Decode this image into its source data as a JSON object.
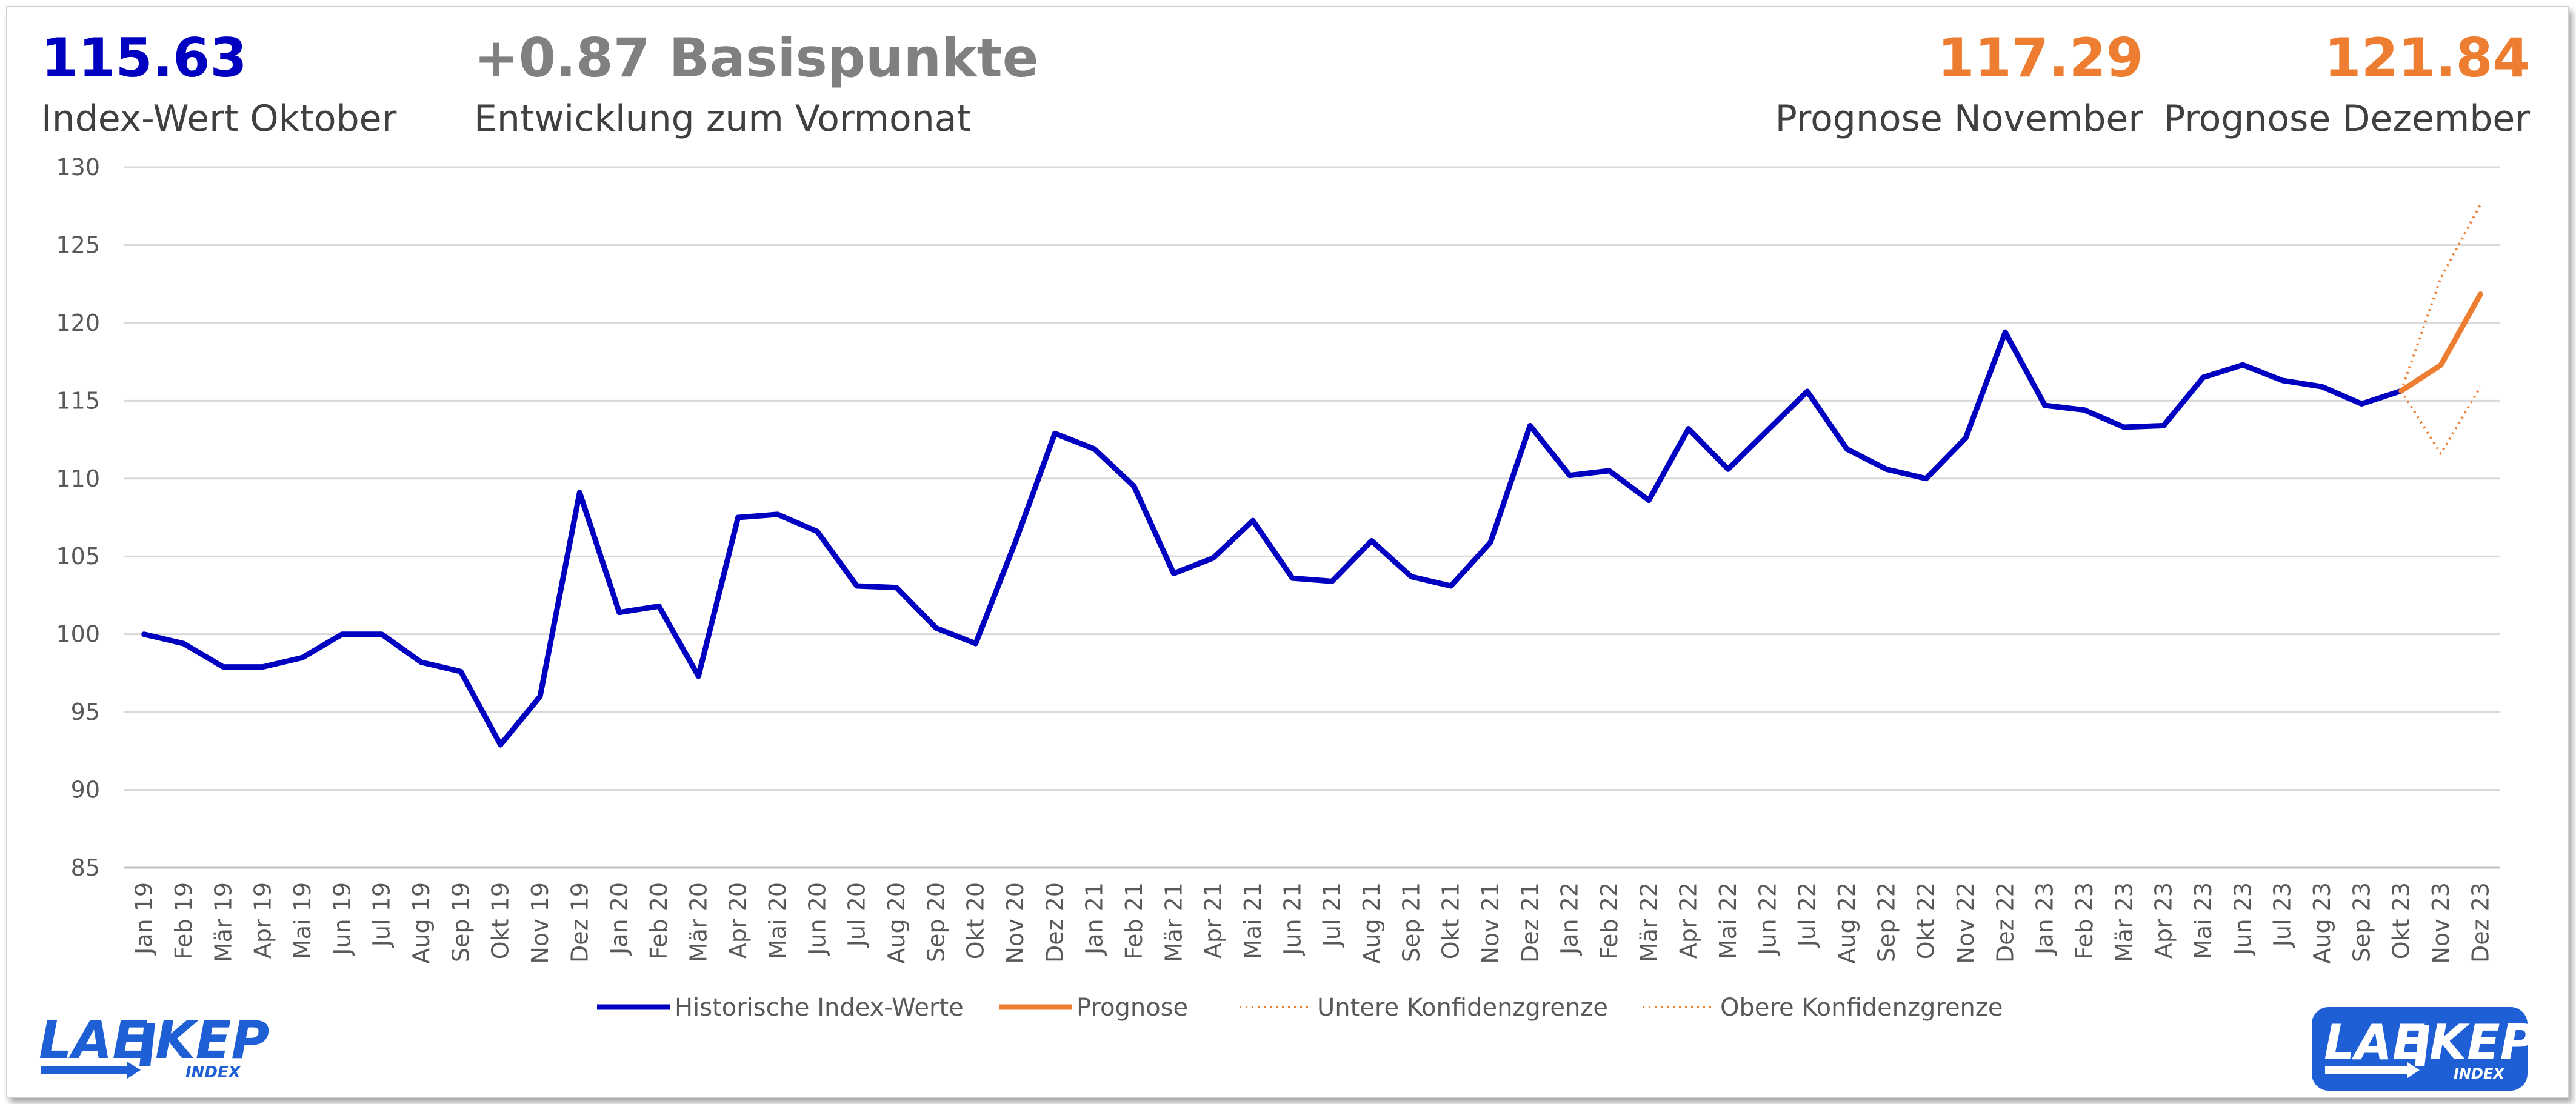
{
  "kpis": {
    "index_value": {
      "value": "115.63",
      "label": "Index-Wert Oktober",
      "color": "#0000c0"
    },
    "change": {
      "value": "+0.87 Basispunkte",
      "label": "Entwicklung zum Vormonat",
      "color": "#808080"
    },
    "forecast_nov": {
      "value": "117.29",
      "label": "Prognose November",
      "color": "#ed7d31"
    },
    "forecast_dec": {
      "value": "121.84",
      "label": "Prognose Dezember",
      "color": "#ed7d31"
    }
  },
  "logos": {
    "left": {
      "text": "LAE KEP",
      "sub": "INDEX"
    },
    "right": {
      "text": "LAE KEP",
      "sub": "INDEX"
    }
  },
  "chart_data": {
    "type": "line",
    "ylim": [
      85,
      130
    ],
    "yticks": [
      85,
      90,
      95,
      100,
      105,
      110,
      115,
      120,
      125,
      130
    ],
    "grid": true,
    "legend_position": "bottom",
    "categories": [
      "Jan 19",
      "Feb 19",
      "Mär 19",
      "Apr 19",
      "Mai 19",
      "Jun 19",
      "Jul 19",
      "Aug 19",
      "Sep 19",
      "Okt 19",
      "Nov 19",
      "Dez 19",
      "Jan 20",
      "Feb 20",
      "Mär 20",
      "Apr 20",
      "Mai 20",
      "Jun 20",
      "Jul 20",
      "Aug 20",
      "Sep 20",
      "Okt 20",
      "Nov 20",
      "Dez 20",
      "Jan 21",
      "Feb 21",
      "Mär 21",
      "Apr 21",
      "Mai 21",
      "Jun 21",
      "Jul 21",
      "Aug 21",
      "Sep 21",
      "Okt 21",
      "Nov 21",
      "Dez 21",
      "Jan 22",
      "Feb 22",
      "Mär 22",
      "Apr 22",
      "Mai 22",
      "Jun 22",
      "Jul 22",
      "Aug 22",
      "Sep 22",
      "Okt 22",
      "Nov 22",
      "Dez 22",
      "Jan 23",
      "Feb 23",
      "Mär 23",
      "Apr 23",
      "Mai 23",
      "Jun 23",
      "Jul 23",
      "Aug 23",
      "Sep 23",
      "Okt 23",
      "Nov 23",
      "Dez 23"
    ],
    "series": [
      {
        "name": "Historische Index-Werte",
        "color": "#0000c0",
        "style": "solid",
        "values": [
          100.0,
          99.4,
          97.9,
          97.9,
          98.5,
          100.0,
          100.0,
          98.2,
          97.6,
          92.9,
          96.0,
          109.1,
          101.4,
          101.8,
          97.3,
          107.5,
          107.7,
          106.6,
          103.1,
          103.0,
          100.4,
          99.4,
          105.9,
          112.9,
          111.9,
          109.5,
          103.9,
          104.9,
          107.3,
          103.6,
          103.4,
          106.0,
          103.7,
          103.1,
          105.9,
          113.4,
          110.2,
          110.5,
          108.6,
          113.2,
          110.6,
          113.1,
          115.6,
          111.9,
          110.6,
          110.0,
          112.6,
          119.4,
          114.7,
          114.4,
          113.3,
          113.4,
          116.5,
          117.3,
          116.3,
          115.9,
          114.8,
          115.63,
          null,
          null
        ]
      },
      {
        "name": "Prognose",
        "color": "#ed7d31",
        "style": "solid",
        "values": [
          null,
          null,
          null,
          null,
          null,
          null,
          null,
          null,
          null,
          null,
          null,
          null,
          null,
          null,
          null,
          null,
          null,
          null,
          null,
          null,
          null,
          null,
          null,
          null,
          null,
          null,
          null,
          null,
          null,
          null,
          null,
          null,
          null,
          null,
          null,
          null,
          null,
          null,
          null,
          null,
          null,
          null,
          null,
          null,
          null,
          null,
          null,
          null,
          null,
          null,
          null,
          null,
          null,
          null,
          null,
          null,
          null,
          115.63,
          117.29,
          121.84
        ]
      },
      {
        "name": "Untere Konfidenzgrenze",
        "color": "#ed7d31",
        "style": "dotted",
        "values": [
          null,
          null,
          null,
          null,
          null,
          null,
          null,
          null,
          null,
          null,
          null,
          null,
          null,
          null,
          null,
          null,
          null,
          null,
          null,
          null,
          null,
          null,
          null,
          null,
          null,
          null,
          null,
          null,
          null,
          null,
          null,
          null,
          null,
          null,
          null,
          null,
          null,
          null,
          null,
          null,
          null,
          null,
          null,
          null,
          null,
          null,
          null,
          null,
          null,
          null,
          null,
          null,
          null,
          null,
          null,
          null,
          null,
          115.63,
          111.6,
          115.9
        ]
      },
      {
        "name": "Obere Konfidenzgrenze",
        "color": "#ed7d31",
        "style": "dotted",
        "values": [
          null,
          null,
          null,
          null,
          null,
          null,
          null,
          null,
          null,
          null,
          null,
          null,
          null,
          null,
          null,
          null,
          null,
          null,
          null,
          null,
          null,
          null,
          null,
          null,
          null,
          null,
          null,
          null,
          null,
          null,
          null,
          null,
          null,
          null,
          null,
          null,
          null,
          null,
          null,
          null,
          null,
          null,
          null,
          null,
          null,
          null,
          null,
          null,
          null,
          null,
          null,
          null,
          null,
          null,
          null,
          null,
          null,
          115.63,
          122.9,
          127.6
        ]
      }
    ]
  }
}
